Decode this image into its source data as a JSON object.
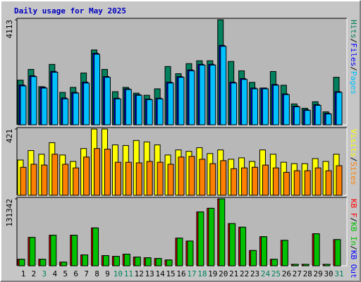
{
  "chart_data": [
    {
      "type": "bar",
      "title": "Daily usage for May 2025",
      "ylim": [
        0,
        4113
      ],
      "yticks": [
        4113
      ],
      "legend_separator": "/",
      "series": [
        {
          "name": "Hits",
          "color": "#00805c",
          "values": [
            1747,
            2169,
            1493,
            2366,
            1268,
            1465,
            2028,
            2930,
            2169,
            1296,
            1465,
            1240,
            1155,
            1409,
            2282,
            2000,
            2395,
            2507,
            2507,
            4113,
            2479,
            2113,
            1662,
            1437,
            2085,
            1549,
            817,
            648,
            901,
            507,
            1859
          ]
        },
        {
          "name": "Files",
          "color": "#0000ff",
          "values": [
            1560,
            1920,
            1470,
            2090,
            1050,
            1270,
            1670,
            2800,
            1890,
            1040,
            1410,
            1180,
            1010,
            1040,
            1670,
            1890,
            2150,
            2370,
            2370,
            3110,
            1670,
            1810,
            1440,
            1440,
            1580,
            1210,
            730,
            590,
            790,
            450,
            1300
          ]
        },
        {
          "name": "Pages",
          "color": "#00c0ff",
          "values": [
            1521,
            1887,
            1437,
            2056,
            1014,
            1240,
            1634,
            2761,
            1859,
            1014,
            1380,
            1155,
            986,
            1014,
            1634,
            1859,
            2113,
            2338,
            2338,
            3071,
            1634,
            1775,
            1409,
            1409,
            1549,
            1183,
            704,
            563,
            761,
            423,
            1268
          ]
        }
      ]
    },
    {
      "type": "bar",
      "ylim": [
        0,
        421
      ],
      "yticks": [
        421
      ],
      "legend_separator": "/",
      "series": [
        {
          "name": "Visits",
          "color": "#ffff00",
          "values": [
            224,
            284,
            261,
            334,
            256,
            215,
            297,
            421,
            421,
            320,
            316,
            348,
            339,
            320,
            256,
            288,
            279,
            302,
            265,
            288,
            229,
            238,
            215,
            288,
            261,
            210,
            201,
            201,
            233,
            215,
            261
          ]
        },
        {
          "name": "Sites",
          "color": "#ff8000",
          "values": [
            178,
            197,
            192,
            261,
            197,
            174,
            243,
            297,
            293,
            210,
            210,
            206,
            215,
            210,
            197,
            243,
            247,
            229,
            201,
            220,
            169,
            174,
            178,
            192,
            174,
            146,
            156,
            156,
            174,
            156,
            188
          ]
        }
      ]
    },
    {
      "type": "bar",
      "ylim": [
        0,
        131342
      ],
      "yticks": [
        131342
      ],
      "legend_separator": "/",
      "categories": [
        "1",
        "2",
        "3",
        "4",
        "5",
        "6",
        "7",
        "8",
        "9",
        "10",
        "11",
        "12",
        "13",
        "14",
        "15",
        "16",
        "17",
        "18",
        "19",
        "20",
        "21",
        "22",
        "23",
        "24",
        "25",
        "26",
        "27",
        "28",
        "29",
        "30",
        "31"
      ],
      "category_colors": [
        "#000000",
        "#000000",
        "#00805c",
        "#000000",
        "#000000",
        "#000000",
        "#000000",
        "#000000",
        "#000000",
        "#00805c",
        "#00805c",
        "#000000",
        "#000000",
        "#000000",
        "#000000",
        "#000000",
        "#00805c",
        "#00805c",
        "#000000",
        "#000000",
        "#000000",
        "#000000",
        "#000000",
        "#00805c",
        "#00805c",
        "#000000",
        "#000000",
        "#000000",
        "#000000",
        "#000000",
        "#00805c"
      ],
      "series": [
        {
          "name": "KB F",
          "color": "#ff0000",
          "values": [
            12852,
            55692,
            12852,
            59976,
            7140,
            59976,
            21420,
            74256,
            19992,
            18564,
            22848,
            17136,
            15708,
            14280,
            11424,
            54264,
            48552,
            105672,
            112812,
            131342,
            82824,
            75684,
            29988,
            57120,
            12852,
            49980,
            2856,
            2856,
            62832,
            2856,
            51408
          ]
        },
        {
          "name": "KB In",
          "color": "#00c000",
          "values": [
            12852,
            55692,
            12852,
            59976,
            7140,
            59976,
            21420,
            74256,
            19992,
            18564,
            22848,
            17136,
            15708,
            14280,
            11424,
            54264,
            48552,
            105672,
            112812,
            131342,
            82824,
            75684,
            29988,
            57120,
            12852,
            49980,
            2856,
            2856,
            62832,
            2856,
            51408
          ]
        },
        {
          "name": "KB Out",
          "color": "#0000ff",
          "values": [
            null,
            null,
            null,
            null,
            null,
            null,
            null,
            null,
            null,
            null,
            null,
            null,
            null,
            null,
            null,
            null,
            null,
            null,
            null,
            null,
            null,
            null,
            null,
            null,
            null,
            null,
            null,
            null,
            null,
            null,
            null
          ]
        }
      ]
    }
  ]
}
